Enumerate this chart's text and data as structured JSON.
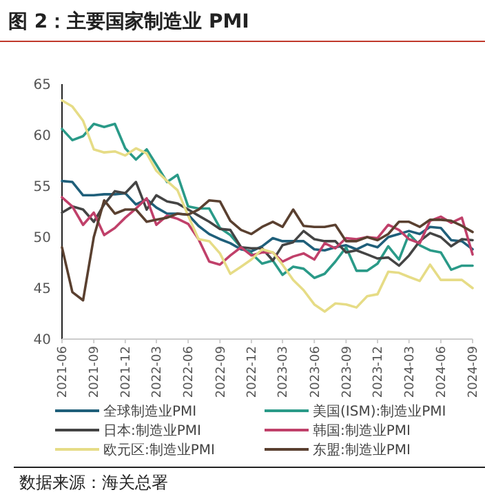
{
  "chart_data": {
    "type": "line",
    "title": "图 2：主要国家制造业 PMI",
    "x": [
      "2021-06",
      "2021-07",
      "2021-08",
      "2021-09",
      "2021-10",
      "2021-11",
      "2021-12",
      "2022-01",
      "2022-02",
      "2022-03",
      "2022-04",
      "2022-05",
      "2022-06",
      "2022-07",
      "2022-08",
      "2022-09",
      "2022-10",
      "2022-11",
      "2022-12",
      "2023-01",
      "2023-02",
      "2023-03",
      "2023-04",
      "2023-05",
      "2023-06",
      "2023-07",
      "2023-08",
      "2023-09",
      "2023-10",
      "2023-11",
      "2023-12",
      "2024-01",
      "2024-02",
      "2024-03",
      "2024-04",
      "2024-05",
      "2024-06",
      "2024-07",
      "2024-08",
      "2024-09"
    ],
    "series": [
      {
        "name": "全球制造业PMI",
        "color": "#1f5f7a",
        "values": [
          55.5,
          55.4,
          54.1,
          54.1,
          54.2,
          54.2,
          54.3,
          53.2,
          53.7,
          52.9,
          52.3,
          52.3,
          52.2,
          51.1,
          50.3,
          49.8,
          49.4,
          48.8,
          48.6,
          49.1,
          49.9,
          49.6,
          49.6,
          49.6,
          48.8,
          48.7,
          49.0,
          49.2,
          48.8,
          49.3,
          49.0,
          50.0,
          50.3,
          50.6,
          50.3,
          51.0,
          50.9,
          49.7,
          49.6,
          48.8
        ]
      },
      {
        "name": "美国(ISM):制造业PMI",
        "color": "#2a9a88",
        "values": [
          60.6,
          59.5,
          59.9,
          61.1,
          60.8,
          61.1,
          58.7,
          57.6,
          58.6,
          57.1,
          55.4,
          56.1,
          53.0,
          52.8,
          52.8,
          50.9,
          50.2,
          49.0,
          48.4,
          47.4,
          47.7,
          46.3,
          47.1,
          46.9,
          46.0,
          46.4,
          47.6,
          49.0,
          46.7,
          46.7,
          47.4,
          49.1,
          47.8,
          50.3,
          49.2,
          48.7,
          48.5,
          46.8,
          47.2,
          47.2
        ]
      },
      {
        "name": "日本:制造业PMI",
        "color": "#444444",
        "values": [
          52.4,
          53.0,
          52.7,
          51.5,
          53.2,
          54.5,
          54.3,
          55.4,
          52.7,
          54.1,
          53.5,
          53.3,
          52.7,
          52.1,
          51.5,
          50.8,
          50.7,
          49.0,
          48.9,
          48.9,
          47.7,
          49.2,
          49.5,
          50.6,
          49.8,
          49.6,
          49.6,
          48.5,
          48.7,
          48.3,
          47.9,
          48.0,
          47.2,
          48.2,
          49.6,
          50.4,
          50.0,
          49.1,
          49.8,
          49.7
        ]
      },
      {
        "name": "韩国:制造业PMI",
        "color": "#c0406a",
        "values": [
          53.9,
          53.0,
          51.2,
          52.4,
          50.2,
          50.9,
          51.9,
          52.8,
          53.8,
          51.2,
          52.1,
          51.8,
          51.3,
          49.8,
          47.6,
          47.3,
          48.2,
          49.0,
          48.2,
          48.5,
          48.5,
          47.6,
          48.1,
          48.4,
          47.8,
          49.4,
          48.9,
          49.9,
          49.8,
          50.0,
          49.9,
          51.2,
          50.7,
          49.8,
          49.4,
          51.6,
          52.0,
          51.4,
          51.9,
          48.3
        ]
      },
      {
        "name": "欧元区:制造业PMI",
        "color": "#e6dc86",
        "values": [
          63.4,
          62.8,
          61.4,
          58.6,
          58.3,
          58.4,
          58.0,
          58.7,
          58.2,
          56.5,
          55.5,
          54.6,
          52.1,
          49.8,
          49.6,
          48.4,
          46.4,
          47.1,
          47.8,
          48.8,
          48.5,
          47.3,
          45.8,
          44.8,
          43.4,
          42.7,
          43.5,
          43.4,
          43.1,
          44.2,
          44.4,
          46.6,
          46.5,
          46.1,
          45.7,
          47.3,
          45.8,
          45.8,
          45.8,
          45.0
        ]
      },
      {
        "name": "东盟:制造业PMI",
        "color": "#5a4030",
        "values": [
          49.0,
          44.6,
          43.8,
          50.0,
          53.6,
          52.3,
          52.7,
          52.7,
          51.5,
          51.7,
          51.9,
          52.3,
          52.2,
          52.7,
          53.6,
          53.5,
          51.6,
          50.7,
          50.3,
          51.0,
          51.5,
          51.0,
          52.7,
          51.1,
          51.0,
          51.0,
          51.2,
          49.6,
          49.6,
          50.0,
          49.7,
          50.3,
          51.5,
          51.5,
          51.0,
          51.7,
          51.7,
          51.6,
          51.1,
          50.5
        ]
      }
    ],
    "xlim": [
      "2021-06",
      "2024-09"
    ],
    "xticks": [
      {
        "value": "2021-06",
        "label": "2021-06"
      },
      {
        "value": "2021-09",
        "label": "2021-09"
      },
      {
        "value": "2021-12",
        "label": "2021-12"
      },
      {
        "value": "2022-03",
        "label": "2022-03"
      },
      {
        "value": "2022-06",
        "label": "2022-06"
      },
      {
        "value": "2022-09",
        "label": "2022-09"
      },
      {
        "value": "2022-12",
        "label": "2022-12"
      },
      {
        "value": "2023-03",
        "label": "2023-03"
      },
      {
        "value": "2023-06",
        "label": "2023-06"
      },
      {
        "value": "2023-09",
        "label": "2023-09"
      },
      {
        "value": "2023-12",
        "label": "2023-12"
      },
      {
        "value": "2024-03",
        "label": "2024-03"
      },
      {
        "value": "2024-06",
        "label": "2024-06"
      },
      {
        "value": "2024-09",
        "label": "2024-09"
      }
    ],
    "ylim": [
      40,
      65
    ],
    "yticks": [
      40,
      45,
      50,
      55,
      60,
      65
    ],
    "grid": false,
    "legend": "bottom",
    "marker": "none",
    "line_style": "solid",
    "annotations": [
      "数据来源：海关总署"
    ]
  }
}
